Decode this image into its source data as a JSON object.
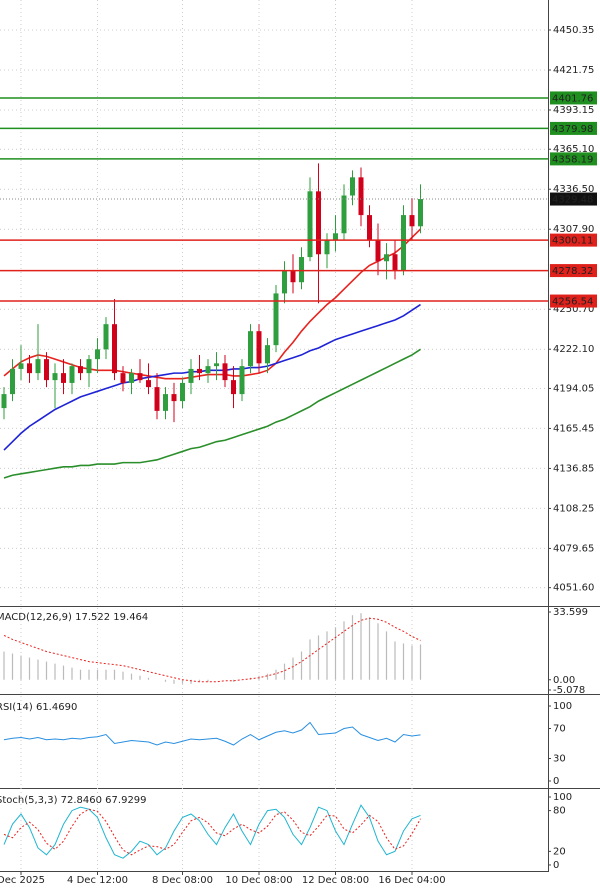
{
  "chart_data": [
    {
      "type": "candlestick",
      "categories": [
        null,
        null,
        "Dec 2025",
        null,
        null,
        null,
        null,
        null,
        null,
        null,
        null,
        "4 Dec 12:00",
        null,
        null,
        null,
        null,
        null,
        null,
        null,
        null,
        null,
        "8 Dec 08:00",
        null,
        null,
        null,
        null,
        null,
        null,
        null,
        null,
        "10 Dec 08:00",
        null,
        null,
        null,
        null,
        null,
        null,
        null,
        null,
        "12 Dec 08:00",
        null,
        null,
        null,
        null,
        null,
        null,
        null,
        null,
        "16 Dec 04:00",
        null
      ],
      "open": [
        4180,
        4190,
        4208,
        4212,
        4205,
        4215,
        4200,
        4205,
        4198,
        4210,
        4205,
        4215,
        4222,
        4240,
        4205,
        4198,
        4205,
        4200,
        4195,
        4178,
        4190,
        4185,
        4198,
        4208,
        4205,
        4210,
        4212,
        4200,
        4190,
        4210,
        4235,
        4212,
        4225,
        4262,
        4278,
        4270,
        4288,
        4335,
        4290,
        4300,
        4305,
        4332,
        4345,
        4318,
        4300,
        4285,
        4290,
        4278,
        4318,
        4310
      ],
      "high": [
        4195,
        4215,
        4225,
        4218,
        4240,
        4220,
        4212,
        4215,
        4212,
        4215,
        4218,
        4230,
        4245,
        4258,
        4210,
        4208,
        4215,
        4212,
        4205,
        4195,
        4198,
        4202,
        4215,
        4218,
        4215,
        4220,
        4218,
        4210,
        4215,
        4240,
        4240,
        4230,
        4268,
        4285,
        4290,
        4295,
        4345,
        4355,
        4305,
        4318,
        4340,
        4350,
        4352,
        4325,
        4312,
        4298,
        4300,
        4325,
        4330,
        4340
      ],
      "low": [
        4172,
        4185,
        4200,
        4198,
        4200,
        4195,
        4180,
        4190,
        4190,
        4200,
        4195,
        4205,
        4215,
        4200,
        4192,
        4190,
        4198,
        4190,
        4172,
        4172,
        4170,
        4180,
        4190,
        4200,
        4198,
        4200,
        4195,
        4180,
        4185,
        4205,
        4205,
        4205,
        4220,
        4255,
        4262,
        4265,
        4285,
        4255,
        4280,
        4292,
        4300,
        4325,
        4310,
        4295,
        4275,
        4272,
        4272,
        4275,
        4300,
        4305
      ],
      "close": [
        4190,
        4208,
        4212,
        4205,
        4215,
        4200,
        4205,
        4198,
        4210,
        4205,
        4215,
        4222,
        4240,
        4205,
        4198,
        4205,
        4200,
        4195,
        4178,
        4190,
        4185,
        4198,
        4208,
        4205,
        4210,
        4212,
        4200,
        4190,
        4210,
        4235,
        4212,
        4225,
        4262,
        4278,
        4270,
        4288,
        4335,
        4290,
        4300,
        4305,
        4332,
        4345,
        4318,
        4300,
        4285,
        4290,
        4278,
        4318,
        4310,
        4329.48
      ],
      "up_color": "#2e9e3e",
      "down_color": "#d0021b",
      "overlays": [
        {
          "color": "#e8231f",
          "values": [
            4203,
            4208,
            4213,
            4216,
            4218,
            4217,
            4215,
            4213,
            4211,
            4209,
            4208,
            4207,
            4207,
            4207,
            4206,
            4205,
            4204,
            4203,
            4202,
            4201,
            4201,
            4201,
            4202,
            4203,
            4204,
            4204,
            4204,
            4203,
            4203,
            4204,
            4205,
            4207,
            4212,
            4220,
            4227,
            4235,
            4242,
            4248,
            4254,
            4259,
            4265,
            4271,
            4277,
            4282,
            4285,
            4288,
            4291,
            4296,
            4302,
            4308
          ]
        },
        {
          "color": "#1f23d6",
          "values": [
            4150,
            4156,
            4162,
            4167,
            4171,
            4175,
            4179,
            4182,
            4185,
            4188,
            4190,
            4192,
            4194,
            4196,
            4198,
            4199,
            4201,
            4202,
            4203,
            4204,
            4205,
            4205,
            4206,
            4206,
            4207,
            4207,
            4207,
            4208,
            4208,
            4209,
            4209,
            4210,
            4212,
            4214,
            4216,
            4218,
            4221,
            4223,
            4226,
            4229,
            4231,
            4233,
            4235,
            4237,
            4239,
            4241,
            4243,
            4246,
            4250,
            4254
          ]
        },
        {
          "color": "#2a8f2a",
          "values": [
            4130,
            4132,
            4133,
            4134,
            4135,
            4136,
            4137,
            4138,
            4138,
            4139,
            4139,
            4140,
            4140,
            4140,
            4141,
            4141,
            4141,
            4142,
            4143,
            4145,
            4147,
            4149,
            4151,
            4152,
            4154,
            4156,
            4157,
            4159,
            4161,
            4163,
            4165,
            4167,
            4170,
            4172,
            4175,
            4178,
            4181,
            4185,
            4188,
            4191,
            4194,
            4197,
            4200,
            4203,
            4206,
            4209,
            4212,
            4215,
            4218,
            4222
          ]
        }
      ],
      "levels": [
        {
          "value": 4401.76,
          "color": "#1f8f1f"
        },
        {
          "value": 4379.98,
          "color": "#1f8f1f"
        },
        {
          "value": 4358.19,
          "color": "#1f8f1f"
        },
        {
          "value": 4300.11,
          "color": "#e0201b"
        },
        {
          "value": 4278.32,
          "color": "#e0201b"
        },
        {
          "value": 4256.54,
          "color": "#e0201b"
        }
      ],
      "ylim": [
        4039.2,
        4471.8
      ],
      "yticks": [
        4450.35,
        4421.75,
        4393.15,
        {
          "value": 4365.1,
          "label": "4365.10"
        },
        {
          "value": 4336.5,
          "label": "4336.50"
        },
        {
          "value": 4307.9,
          "label": "4307.90"
        },
        {
          "value": 4250.7,
          "label": "4250.70"
        },
        {
          "value": 4222.1,
          "label": "4222.10"
        },
        4194.05,
        4165.45,
        4136.85,
        4108.25,
        4079.65,
        {
          "value": 4051.6,
          "label": "4051.60"
        }
      ],
      "grid": true
    },
    {
      "type": "macd",
      "title": "MACD(12,26,9) 17.522 19.464",
      "values": [
        14,
        13,
        12,
        11,
        10,
        9,
        8,
        7,
        6,
        5,
        5,
        5,
        5,
        5,
        4,
        3,
        2,
        1,
        0,
        -1,
        -2,
        -2,
        -2,
        -1,
        -1,
        0,
        0,
        -1,
        0,
        1,
        2,
        3,
        5,
        8,
        11,
        14,
        20,
        22,
        24,
        26,
        29,
        32,
        33,
        31,
        28,
        24,
        19,
        18,
        17,
        17.522
      ],
      "color": "#bbbbbb",
      "signal": [
        22,
        20,
        18.5,
        17,
        15.5,
        14,
        13,
        12,
        11,
        10,
        9,
        8.5,
        8,
        7.5,
        7,
        6,
        5,
        4,
        3,
        2,
        1,
        0,
        -0.5,
        -1,
        -1,
        -1,
        -0.5,
        -0.5,
        0,
        0.5,
        1,
        2,
        3,
        4.5,
        6.5,
        9,
        12,
        15,
        18,
        21,
        24,
        27,
        29.5,
        30.5,
        30,
        28.5,
        26,
        24,
        21.5,
        19.464
      ],
      "signal_color": "#e8231f",
      "ylim": [
        -5.078,
        33.599
      ],
      "yticks": [
        33.599,
        {
          "value": 0,
          "label": "0.00"
        },
        -5.078
      ]
    },
    {
      "type": "line",
      "title": "RSI(14) 61.4690",
      "values": [
        55,
        57,
        58,
        56,
        58,
        55,
        56,
        55,
        57,
        56,
        58,
        59,
        62,
        50,
        52,
        54,
        53,
        52,
        48,
        52,
        50,
        53,
        56,
        55,
        56,
        57,
        53,
        48,
        56,
        62,
        55,
        60,
        65,
        67,
        64,
        68,
        78,
        62,
        63,
        64,
        70,
        72,
        62,
        58,
        54,
        57,
        52,
        62,
        60,
        61.469
      ],
      "color": "#2a8fe0",
      "ylim": [
        -8,
        110.7
      ],
      "yticks": [
        100,
        70,
        30,
        0
      ]
    },
    {
      "type": "stochastic",
      "title": "Stoch(5,3,3) 72.8460 67.9299",
      "k": [
        30,
        60,
        75,
        55,
        25,
        15,
        30,
        60,
        80,
        85,
        82,
        70,
        40,
        15,
        10,
        20,
        35,
        30,
        15,
        25,
        50,
        70,
        75,
        65,
        45,
        30,
        55,
        75,
        50,
        30,
        60,
        80,
        82,
        70,
        45,
        30,
        55,
        85,
        80,
        50,
        30,
        60,
        88,
        70,
        35,
        15,
        20,
        50,
        68,
        72.846
      ],
      "k_color": "#1fb5d0",
      "d": [
        45,
        40,
        55,
        63,
        52,
        32,
        23,
        35,
        57,
        75,
        82,
        79,
        64,
        42,
        22,
        15,
        22,
        28,
        27,
        23,
        30,
        48,
        65,
        70,
        62,
        47,
        43,
        53,
        60,
        52,
        47,
        57,
        74,
        78,
        66,
        48,
        43,
        57,
        73,
        72,
        53,
        47,
        59,
        73,
        64,
        40,
        23,
        28,
        46,
        67.9299
      ],
      "d_color": "#e8231f",
      "ylim": [
        -7.4,
        110.3
      ],
      "yticks": [
        100,
        80,
        20,
        0
      ]
    }
  ]
}
